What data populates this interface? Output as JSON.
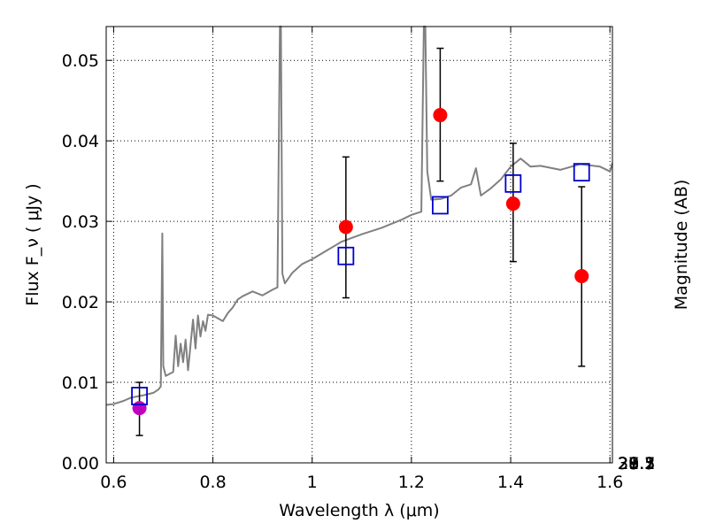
{
  "chart_data": {
    "type": "scatter",
    "xlabel": "Wavelength  λ (μm)",
    "ylabel": "Flux  F_ν  ( μJy )",
    "ylabel_right": "Magnitude (AB)",
    "xlim": [
      0.585,
      1.605
    ],
    "ylim": [
      0.0,
      0.0542
    ],
    "x_ticks": [
      0.6,
      0.8,
      1.0,
      1.2,
      1.4,
      1.6
    ],
    "x_tick_labels": [
      "0.6",
      "0.8",
      "1",
      "1.2",
      "1.4",
      "1.6"
    ],
    "y_ticks": [
      0.0,
      0.01,
      0.02,
      0.03,
      0.04,
      0.05
    ],
    "y_tick_labels": [
      "0.00",
      "0.01",
      "0.02",
      "0.03",
      "0.04",
      "0.05"
    ],
    "mag_ticks": [
      27.1,
      27.3,
      27.5,
      27.7,
      28,
      28.2,
      28.5,
      29,
      29.5,
      30,
      31
    ],
    "mag_tick_labels": [
      "27.1",
      "27.3",
      "27.5",
      "27.7",
      "28",
      "28.2",
      "28.5",
      "29",
      "29.5",
      "30",
      "31"
    ],
    "grid": true,
    "colors": {
      "spectrum": "#808080",
      "observed": "#ff0000",
      "observed_first": "#bf00bf",
      "model": "#0000cc",
      "errorbar": "#000000"
    },
    "series": [
      {
        "type": "line",
        "x": [
          0.585,
          0.6,
          0.62,
          0.635,
          0.66,
          0.68,
          0.69,
          0.695,
          0.698,
          0.7,
          0.705,
          0.72,
          0.725,
          0.73,
          0.735,
          0.74,
          0.745,
          0.75,
          0.76,
          0.765,
          0.77,
          0.775,
          0.78,
          0.785,
          0.79,
          0.8,
          0.82,
          0.83,
          0.84,
          0.85,
          0.86,
          0.88,
          0.9,
          0.92,
          0.93,
          0.935,
          0.937,
          0.94,
          0.945,
          0.96,
          0.98,
          1.0,
          1.03,
          1.06,
          1.1,
          1.14,
          1.18,
          1.2,
          1.22,
          1.225,
          1.228,
          1.232,
          1.24,
          1.26,
          1.28,
          1.3,
          1.32,
          1.33,
          1.34,
          1.36,
          1.38,
          1.4,
          1.42,
          1.44,
          1.46,
          1.5,
          1.54,
          1.58,
          1.6,
          1.605
        ],
        "y": [
          0.0072,
          0.0073,
          0.0077,
          0.0081,
          0.0084,
          0.0087,
          0.0091,
          0.0095,
          0.0285,
          0.012,
          0.0108,
          0.0113,
          0.0158,
          0.012,
          0.0148,
          0.0125,
          0.0153,
          0.0115,
          0.0178,
          0.0142,
          0.0183,
          0.0157,
          0.0176,
          0.0164,
          0.0184,
          0.0183,
          0.0176,
          0.0186,
          0.0193,
          0.0203,
          0.0207,
          0.0213,
          0.0208,
          0.0215,
          0.0218,
          0.0542,
          0.0542,
          0.0235,
          0.0223,
          0.0236,
          0.0247,
          0.0253,
          0.0264,
          0.0275,
          0.0284,
          0.0292,
          0.0302,
          0.0308,
          0.0312,
          0.0542,
          0.0542,
          0.0362,
          0.0327,
          0.0328,
          0.0332,
          0.0342,
          0.0346,
          0.0366,
          0.0332,
          0.0341,
          0.0352,
          0.0368,
          0.0378,
          0.0368,
          0.0369,
          0.0364,
          0.0371,
          0.0368,
          0.0362,
          0.0372
        ]
      },
      {
        "type": "points",
        "x": [
          0.652,
          1.068,
          1.258,
          1.405,
          1.543
        ],
        "y": [
          0.0068,
          0.0293,
          0.0432,
          0.0322,
          0.0232
        ],
        "yerr_low": [
          0.0034,
          0.0205,
          0.035,
          0.025,
          0.012
        ],
        "yerr_high": [
          0.01,
          0.038,
          0.0515,
          0.0397,
          0.0343
        ]
      },
      {
        "type": "squares",
        "x": [
          0.652,
          1.068,
          1.258,
          1.405,
          1.543
        ],
        "y": [
          0.0083,
          0.0257,
          0.032,
          0.0347,
          0.0361
        ]
      }
    ]
  }
}
